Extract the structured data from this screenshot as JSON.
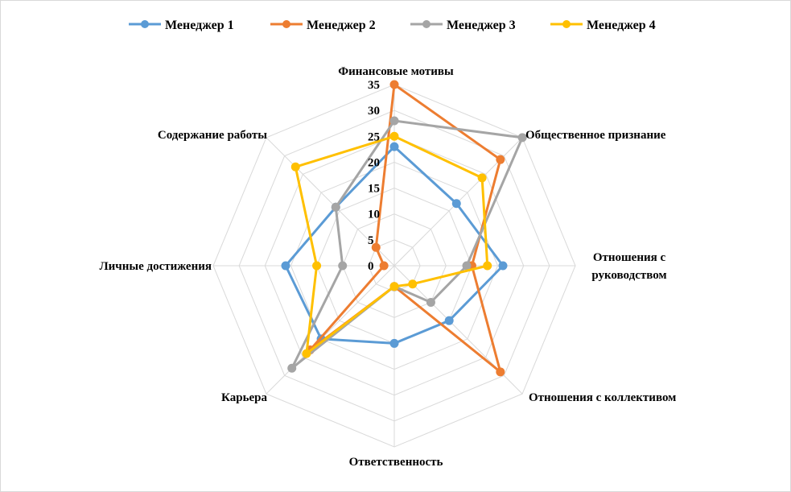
{
  "chart_data": {
    "type": "radar",
    "title": "",
    "categories": [
      "Финансовые мотивы",
      "Общественное признание",
      "Отношения с руководством",
      "Отношения с коллективом",
      "Ответственность",
      "Карьера",
      "Личные достижения",
      "Содержание работы"
    ],
    "r_ticks": [
      "0",
      "5",
      "10",
      "15",
      "20",
      "25",
      "30",
      "35"
    ],
    "r_range": [
      0,
      35
    ],
    "grid": true,
    "legend_position": "top",
    "series": [
      {
        "name": "Менеджер 1",
        "color": "#5B9BD5",
        "values": [
          23,
          17,
          21,
          15,
          15,
          20,
          21,
          16
        ]
      },
      {
        "name": "Менеджер 2",
        "color": "#ED7D31",
        "values": [
          35,
          29,
          15,
          29,
          4,
          23,
          2,
          5
        ]
      },
      {
        "name": "Менеджер 3",
        "color": "#A5A5A5",
        "values": [
          28,
          35,
          14,
          10,
          4,
          28,
          10,
          16
        ]
      },
      {
        "name": "Менеджер 4",
        "color": "#FFC000",
        "values": [
          25,
          24,
          18,
          5,
          4,
          24,
          15,
          27
        ]
      }
    ]
  }
}
